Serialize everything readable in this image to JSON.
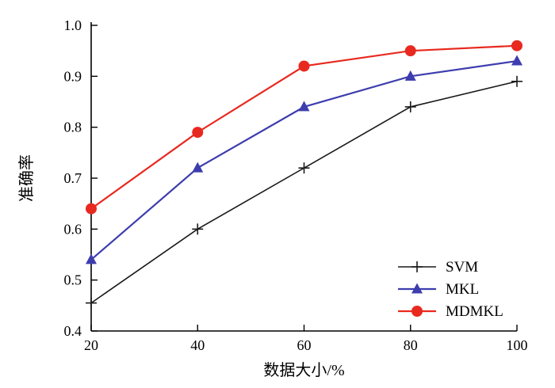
{
  "chart_data": {
    "type": "line",
    "title": "",
    "xlabel": "数据大小/%",
    "ylabel": "准确率",
    "x": [
      20,
      40,
      60,
      80,
      100
    ],
    "series": [
      {
        "name": "SVM",
        "values": [
          0.455,
          0.6,
          0.72,
          0.84,
          0.89
        ],
        "color": "#1a1a1a",
        "marker": "plus"
      },
      {
        "name": "MKL",
        "values": [
          0.54,
          0.72,
          0.84,
          0.9,
          0.93
        ],
        "color": "#3d3dae",
        "marker": "triangle"
      },
      {
        "name": "MDMKL",
        "values": [
          0.64,
          0.79,
          0.92,
          0.95,
          0.96
        ],
        "color": "#e8291f",
        "marker": "circle"
      }
    ],
    "xlim": [
      20,
      100
    ],
    "ylim": [
      0.4,
      1.0
    ],
    "xticks": [
      20,
      40,
      60,
      80,
      100
    ],
    "yticks": [
      0.4,
      0.5,
      0.6,
      0.7,
      0.8,
      0.9,
      1.0
    ],
    "grid": false,
    "legend_position": "bottom-right",
    "axis_color": "#000000"
  }
}
